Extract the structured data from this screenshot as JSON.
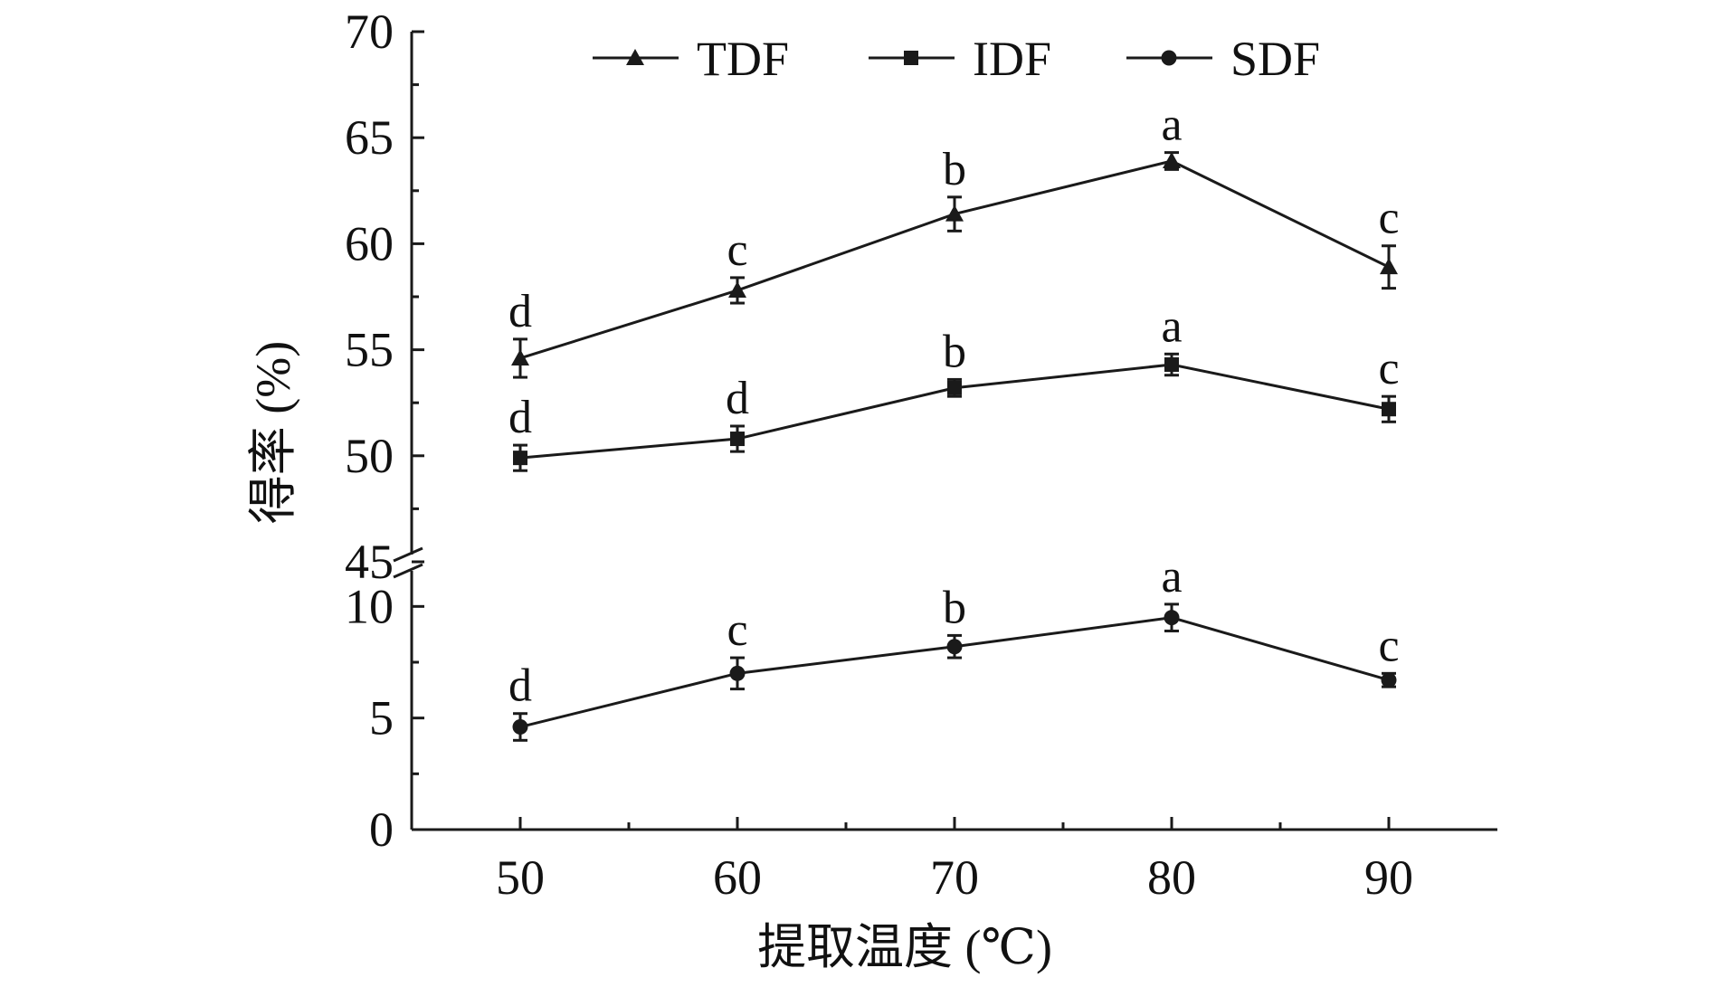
{
  "chart_data": {
    "type": "line",
    "xlabel": "提取温度 (℃)",
    "ylabel": "得率 (%)",
    "x": [
      50,
      60,
      70,
      80,
      90
    ],
    "xlim": [
      45,
      95
    ],
    "x_ticks": [
      "50",
      "60",
      "70",
      "80",
      "90"
    ],
    "y_axis_break": {
      "lower_range": [
        0,
        12
      ],
      "upper_range": [
        45,
        70
      ],
      "lower_ticks": [
        "0",
        "5",
        "10"
      ],
      "upper_ticks": [
        "45",
        "50",
        "55",
        "60",
        "65",
        "70"
      ]
    },
    "legend_placement": "top",
    "grid": false,
    "series": [
      {
        "name": "TDF",
        "marker": "triangle",
        "values": [
          54.6,
          57.8,
          61.4,
          63.9,
          58.9
        ],
        "errors": [
          0.9,
          0.6,
          0.8,
          0.4,
          1.0
        ],
        "letters": [
          "d",
          "c",
          "b",
          "a",
          "c"
        ]
      },
      {
        "name": "IDF",
        "marker": "square",
        "values": [
          49.9,
          50.8,
          53.2,
          54.3,
          52.2
        ],
        "errors": [
          0.6,
          0.6,
          0.4,
          0.5,
          0.6
        ],
        "letters": [
          "d",
          "d",
          "b",
          "a",
          "c"
        ]
      },
      {
        "name": "SDF",
        "marker": "circle",
        "values": [
          4.6,
          7.0,
          8.2,
          9.5,
          6.7
        ],
        "errors": [
          0.6,
          0.7,
          0.5,
          0.6,
          0.3
        ],
        "letters": [
          "d",
          "c",
          "b",
          "a",
          "c"
        ]
      }
    ],
    "colors": {
      "line": "#1a1a1a",
      "text": "#111111",
      "background": "#ffffff"
    }
  }
}
